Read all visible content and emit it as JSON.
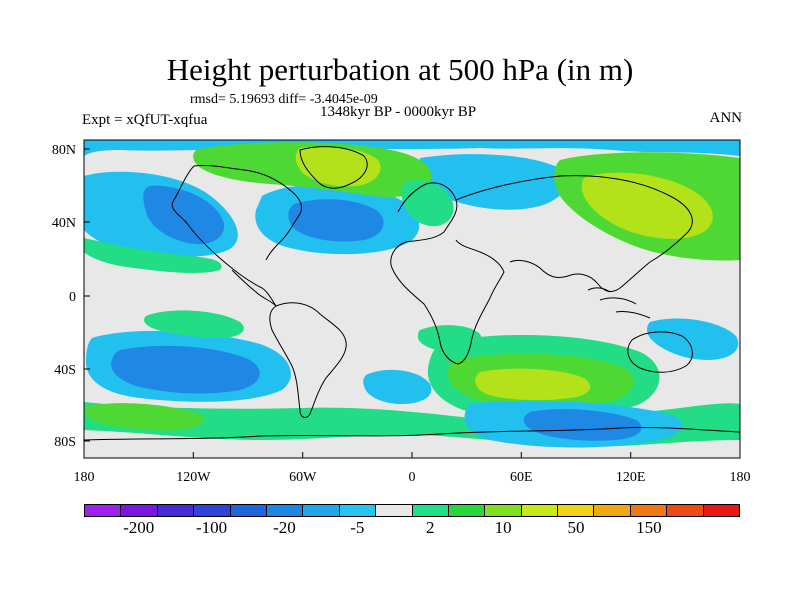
{
  "title": "Height perturbation at 500 hPa (in m)",
  "stats": "rmsd= 5.19693 diff= -3.4045e-09",
  "period": "1348kyr BP - 0000kyr BP",
  "experiment": "Expt = xQfUT-xqfua",
  "season": "ANN",
  "axes": {
    "lon_ticks": [
      "180",
      "120W",
      "60W",
      "0",
      "60E",
      "120E",
      "180"
    ],
    "lat_ticks": [
      "80N",
      "40N",
      "0",
      "40S",
      "80S"
    ]
  },
  "colorbar": {
    "colors": [
      "#a020f0",
      "#7a18e0",
      "#4a2ad8",
      "#2f44d8",
      "#1e66dc",
      "#1a88e4",
      "#22a6ec",
      "#26c4f0",
      "#e8e8e8",
      "#1ee088",
      "#28d838",
      "#7ee020",
      "#c8e81a",
      "#f0d414",
      "#f0a812",
      "#f07810",
      "#ec4a10",
      "#e81a10"
    ],
    "labels": [
      "-200",
      "-100",
      "-20",
      "-5",
      "2",
      "10",
      "50",
      "150"
    ],
    "label_positions": [
      1,
      3,
      5,
      7,
      9,
      11,
      13,
      15
    ]
  },
  "map_colors": {
    "neutral": "#e8e8e8",
    "neg_weak": "#22c0ee",
    "neg_mid": "#1e88e4",
    "neg_strong": "#2a62d4",
    "pos_weak": "#22dc86",
    "pos_mid": "#4ed834",
    "pos_strong": "#b4e21a",
    "coast": "#000000"
  }
}
